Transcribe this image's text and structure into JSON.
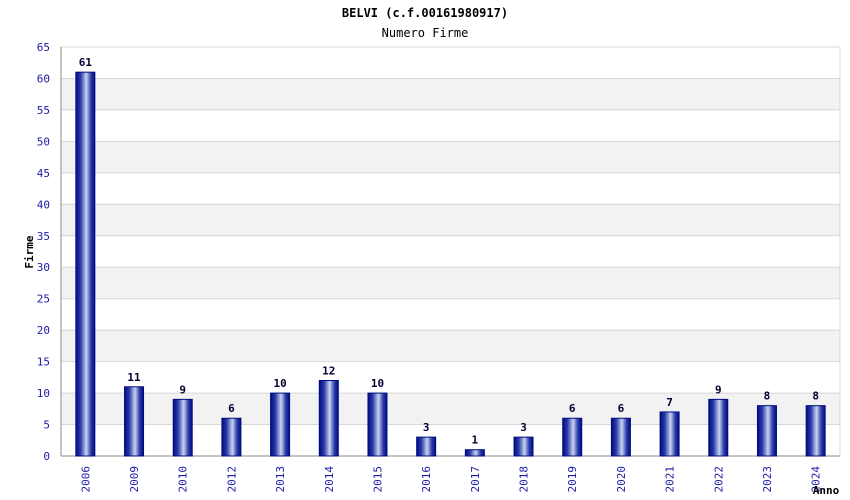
{
  "chart_data": {
    "type": "bar",
    "title": "BELVI (c.f.00161980917)",
    "subtitle": "Numero Firme",
    "xlabel": "Anno",
    "ylabel": "Firme",
    "categories": [
      "2006",
      "2009",
      "2010",
      "2012",
      "2013",
      "2014",
      "2015",
      "2016",
      "2017",
      "2018",
      "2019",
      "2020",
      "2021",
      "2022",
      "2023",
      "2024"
    ],
    "values": [
      61,
      11,
      9,
      6,
      10,
      12,
      10,
      3,
      1,
      3,
      6,
      6,
      7,
      9,
      8,
      8
    ],
    "ylim": [
      0,
      65
    ],
    "yticks": [
      0,
      5,
      10,
      15,
      20,
      25,
      30,
      35,
      40,
      45,
      50,
      55,
      60,
      65
    ],
    "grid": true,
    "data_labels": true,
    "colors": {
      "bar_edge": "#000c80",
      "bar_mid": "#c8d4f0",
      "bar_dark": "#1a2a9a",
      "band_light": "#f2f2f2",
      "band_white": "#ffffff",
      "grid": "#d8d8d8",
      "tick_text": "#1a1aa6"
    }
  }
}
